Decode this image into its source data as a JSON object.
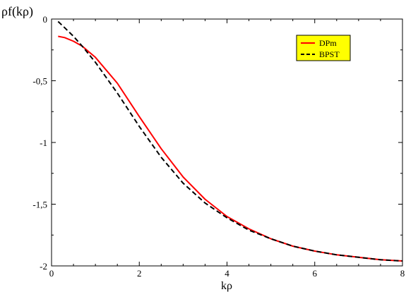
{
  "chart_data": {
    "type": "line",
    "title": "",
    "xlabel": "kρ",
    "ylabel": "ρf(kρ)",
    "xlim": [
      0,
      8
    ],
    "ylim": [
      -2,
      0
    ],
    "xticks": [
      0,
      2,
      4,
      6,
      8
    ],
    "xtick_labels": [
      "0",
      "2",
      "4",
      "6",
      "8"
    ],
    "yticks": [
      0,
      -0.5,
      -1,
      -1.5,
      -2
    ],
    "ytick_labels": [
      "0",
      "-0,5",
      "-1",
      "-1,5",
      "-2"
    ],
    "grid": false,
    "legend_position": "top-right",
    "legend_background": "#ffff00",
    "series": [
      {
        "name": "DPm",
        "color": "#ff0000",
        "style": "solid",
        "x": [
          0.15,
          0.3,
          0.5,
          0.7,
          1.0,
          1.5,
          2.0,
          2.5,
          3.0,
          3.5,
          4.0,
          4.5,
          5.0,
          5.5,
          6.0,
          6.5,
          7.0,
          7.5,
          8.0
        ],
        "y": [
          -0.14,
          -0.15,
          -0.18,
          -0.22,
          -0.31,
          -0.52,
          -0.79,
          -1.05,
          -1.28,
          -1.46,
          -1.6,
          -1.7,
          -1.78,
          -1.84,
          -1.88,
          -1.91,
          -1.93,
          -1.95,
          -1.96
        ]
      },
      {
        "name": "BPST",
        "color": "#000000",
        "style": "dashed",
        "x": [
          0.15,
          0.3,
          0.5,
          0.7,
          1.0,
          1.5,
          2.0,
          2.5,
          3.0,
          3.5,
          4.0,
          4.5,
          5.0,
          5.5,
          6.0,
          6.5,
          7.0,
          7.5,
          8.0
        ],
        "y": [
          -0.02,
          -0.07,
          -0.14,
          -0.22,
          -0.35,
          -0.6,
          -0.87,
          -1.12,
          -1.33,
          -1.49,
          -1.61,
          -1.71,
          -1.78,
          -1.84,
          -1.88,
          -1.91,
          -1.93,
          -1.95,
          -1.96
        ]
      }
    ]
  }
}
